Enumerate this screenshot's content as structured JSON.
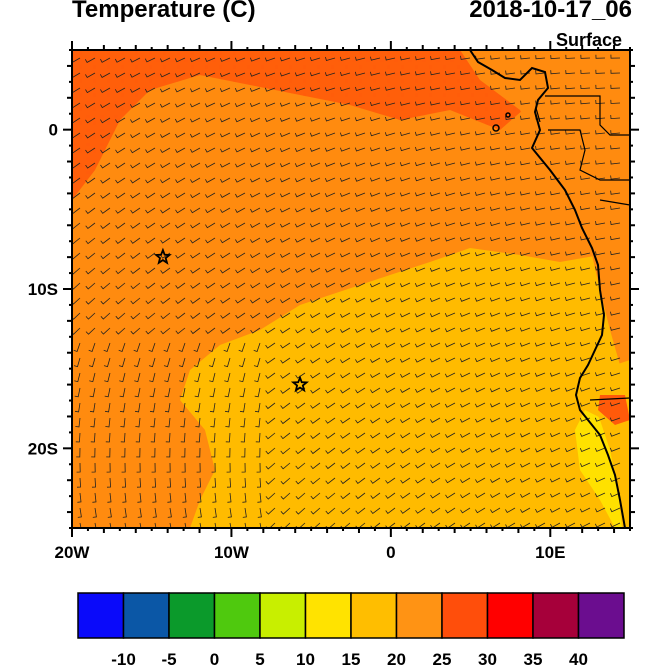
{
  "header": {
    "title": "Temperature (C)",
    "datetime": "2018-10-17_06",
    "level": "Surface"
  },
  "map": {
    "lon_range": [
      -20,
      15
    ],
    "lat_range": [
      -25,
      5
    ],
    "x_ticks": [
      {
        "value": -20,
        "label": "20W"
      },
      {
        "value": -10,
        "label": "10W"
      },
      {
        "value": 0,
        "label": "0"
      },
      {
        "value": 10,
        "label": "10E"
      }
    ],
    "y_ticks": [
      {
        "value": 0,
        "label": "0"
      },
      {
        "value": -10,
        "label": "10S"
      },
      {
        "value": -20,
        "label": "20S"
      }
    ],
    "markers": [
      {
        "name": "star-marker-1",
        "lon": -14.3,
        "lat": -8.0,
        "symbol": "star"
      },
      {
        "name": "star-marker-2",
        "lon": -5.7,
        "lat": -16.0,
        "symbol": "star"
      }
    ],
    "colors": {
      "warm_25_30": "#ff8b0f",
      "warm_20_25": "#ffbb00",
      "hot_30_35": "#ff5a0a",
      "mild_15_20": "#ffe100",
      "cool_10_15": "#d0f000"
    }
  },
  "colorbar": {
    "colors": [
      "#0a0afa",
      "#0b57a6",
      "#0b9a2b",
      "#4fc90e",
      "#c8ef00",
      "#ffe300",
      "#ffbe00",
      "#ff9314",
      "#ff4e0b",
      "#ff0000",
      "#a6003a",
      "#6b0d8f"
    ],
    "labels": [
      "-10",
      "-5",
      "0",
      "5",
      "10",
      "15",
      "20",
      "25",
      "30",
      "35",
      "40"
    ]
  }
}
